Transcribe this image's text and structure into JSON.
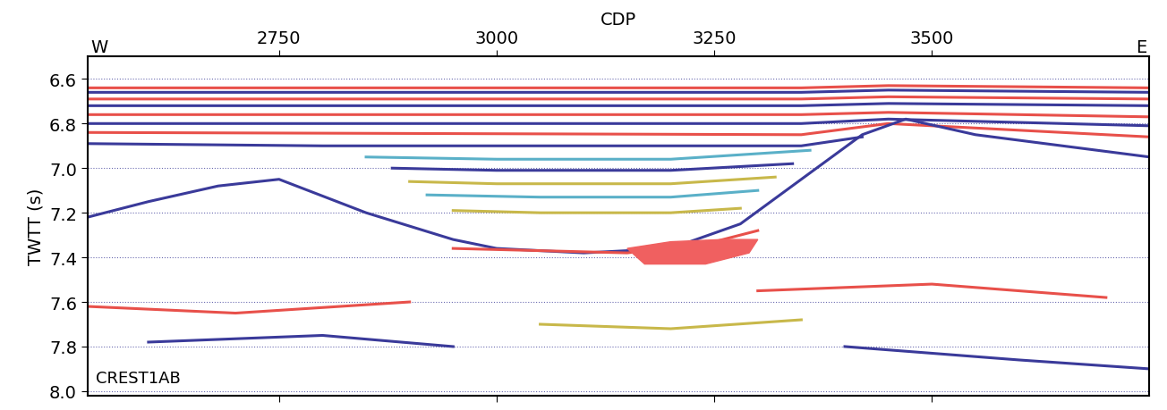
{
  "chart_data": {
    "type": "seismic_section",
    "title": "CDP",
    "y_label": "TWTT (s)",
    "annotations": [
      "W",
      "E",
      "CREST1AB"
    ],
    "xlim": [
      2530,
      3750
    ],
    "xticks": [
      2750,
      3000,
      3250,
      3500
    ],
    "ylim": [
      8.02,
      6.5
    ],
    "yticks": [
      6.6,
      6.8,
      {
        "value": 7.0,
        "label": "7.0"
      },
      7.2,
      7.4,
      7.6,
      7.8,
      {
        "value": 8.0,
        "label": "8.0"
      }
    ],
    "grid": true,
    "series": [
      {
        "type": "line",
        "color": "#e8504a",
        "x": [
          2530,
          3350,
          3450,
          3750
        ],
        "values": [
          6.64,
          6.64,
          6.63,
          6.64
        ]
      },
      {
        "type": "line",
        "color": "#3a3a9a",
        "x": [
          2530,
          3350,
          3450,
          3750
        ],
        "values": [
          6.66,
          6.66,
          6.65,
          6.66
        ]
      },
      {
        "type": "line",
        "color": "#e8504a",
        "x": [
          2530,
          3350,
          3450,
          3750
        ],
        "values": [
          6.69,
          6.69,
          6.68,
          6.69
        ]
      },
      {
        "type": "line",
        "color": "#3a3a9a",
        "x": [
          2530,
          3350,
          3450,
          3750
        ],
        "values": [
          6.72,
          6.72,
          6.71,
          6.72
        ]
      },
      {
        "type": "line",
        "color": "#e8504a",
        "x": [
          2530,
          3350,
          3450,
          3750
        ],
        "values": [
          6.76,
          6.76,
          6.75,
          6.77
        ]
      },
      {
        "type": "line",
        "color": "#3a3a9a",
        "x": [
          2530,
          3350,
          3450,
          3750
        ],
        "values": [
          6.8,
          6.8,
          6.78,
          6.81
        ]
      },
      {
        "type": "line",
        "color": "#e8504a",
        "x": [
          2530,
          3350,
          3450,
          3750
        ],
        "values": [
          6.84,
          6.85,
          6.8,
          6.86
        ]
      },
      {
        "type": "line",
        "color": "#3a3a9a",
        "x": [
          2530,
          2800,
          3350,
          3420
        ],
        "values": [
          6.89,
          6.9,
          6.9,
          6.86
        ]
      },
      {
        "type": "line",
        "color": "#5ab0c8",
        "x": [
          2850,
          3000,
          3200,
          3360
        ],
        "values": [
          6.95,
          6.96,
          6.96,
          6.92
        ]
      },
      {
        "type": "line",
        "color": "#3a3a9a",
        "x": [
          2880,
          3000,
          3200,
          3340
        ],
        "values": [
          7.0,
          7.01,
          7.01,
          6.98
        ]
      },
      {
        "type": "line",
        "color": "#c8b84a",
        "x": [
          2900,
          3000,
          3200,
          3320
        ],
        "values": [
          7.06,
          7.07,
          7.07,
          7.04
        ]
      },
      {
        "type": "line",
        "color": "#5ab0c8",
        "x": [
          2920,
          3050,
          3200,
          3300
        ],
        "values": [
          7.12,
          7.13,
          7.13,
          7.1
        ]
      },
      {
        "type": "line",
        "color": "#c8b84a",
        "x": [
          2950,
          3050,
          3200,
          3280
        ],
        "values": [
          7.19,
          7.2,
          7.2,
          7.18
        ]
      },
      {
        "type": "line",
        "color": "#3a3a9a",
        "x": [
          2530,
          2600,
          2680,
          2750,
          2850,
          2950,
          3000,
          3100,
          3200,
          3280,
          3350,
          3420,
          3470,
          3550,
          3650,
          3750
        ],
        "values": [
          7.22,
          7.15,
          7.08,
          7.05,
          7.2,
          7.32,
          7.36,
          7.38,
          7.36,
          7.25,
          7.05,
          6.85,
          6.78,
          6.85,
          6.9,
          6.95
        ]
      },
      {
        "type": "line",
        "color": "#e8504a",
        "x": [
          2950,
          3050,
          3150,
          3250,
          3300
        ],
        "values": [
          7.36,
          7.37,
          7.38,
          7.33,
          7.28
        ]
      },
      {
        "type": "fill",
        "color": "#f06060",
        "x": [
          3150,
          3200,
          3260,
          3300,
          3290,
          3240,
          3170
        ],
        "values": [
          7.36,
          7.33,
          7.32,
          7.32,
          7.38,
          7.43,
          7.43
        ]
      },
      {
        "type": "line",
        "color": "#e8504a",
        "x": [
          2530,
          2700,
          2900
        ],
        "values": [
          7.62,
          7.65,
          7.6
        ]
      },
      {
        "type": "line",
        "color": "#3a3a9a",
        "x": [
          2600,
          2800,
          2950
        ],
        "values": [
          7.78,
          7.75,
          7.8
        ]
      },
      {
        "type": "line",
        "color": "#3a3a9a",
        "x": [
          3400,
          3600,
          3750
        ],
        "values": [
          7.8,
          7.86,
          7.9
        ]
      },
      {
        "type": "line",
        "color": "#e8504a",
        "x": [
          3300,
          3500,
          3700
        ],
        "values": [
          7.55,
          7.52,
          7.58
        ]
      },
      {
        "type": "line",
        "color": "#c8b84a",
        "x": [
          3050,
          3200,
          3350
        ],
        "values": [
          7.7,
          7.72,
          7.68
        ]
      }
    ]
  }
}
